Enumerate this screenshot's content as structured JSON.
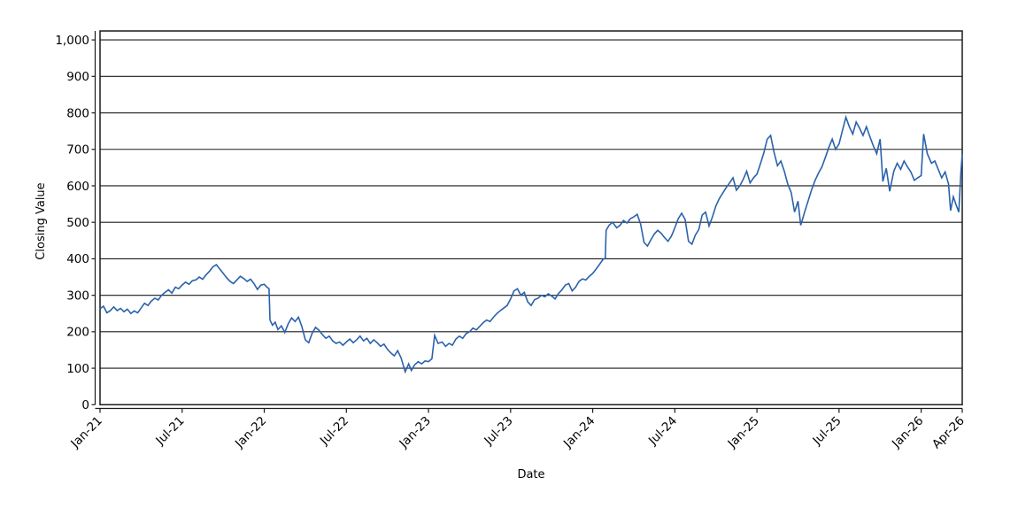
{
  "chart_data": {
    "type": "line",
    "title": "",
    "xlabel": "Date",
    "ylabel": "Closing Value",
    "ylim": [
      0,
      1025
    ],
    "yticks": [
      0,
      100,
      200,
      300,
      400,
      500,
      600,
      700,
      800,
      900,
      1000
    ],
    "ytick_labels": [
      "0",
      "100",
      "200",
      "300",
      "400",
      "500",
      "600",
      "700",
      "800",
      "900",
      "1,000"
    ],
    "x_range_months": [
      0,
      63
    ],
    "xticks": [
      {
        "label": "Jan-21",
        "m": 0
      },
      {
        "label": "Jul-21",
        "m": 6
      },
      {
        "label": "Jan-22",
        "m": 12
      },
      {
        "label": "Jul-22",
        "m": 18
      },
      {
        "label": "Jan-23",
        "m": 24
      },
      {
        "label": "Jul-23",
        "m": 30
      },
      {
        "label": "Jan-24",
        "m": 36
      },
      {
        "label": "Jul-24",
        "m": 42
      },
      {
        "label": "Jan-25",
        "m": 48
      },
      {
        "label": "Jul-25",
        "m": 54
      },
      {
        "label": "Jan-26",
        "m": 60
      },
      {
        "label": "Apr-26",
        "m": 63
      }
    ],
    "grid": "horizontal",
    "legend": "none",
    "line_color": "#2b62ab",
    "axis_color": "#1a1a1a",
    "series": [
      {
        "name": "Closing Value",
        "points": [
          [
            0,
            263
          ],
          [
            0.25,
            270
          ],
          [
            0.5,
            252
          ],
          [
            0.75,
            258
          ],
          [
            1,
            268
          ],
          [
            1.25,
            258
          ],
          [
            1.5,
            264
          ],
          [
            1.75,
            255
          ],
          [
            2,
            262
          ],
          [
            2.25,
            250
          ],
          [
            2.5,
            257
          ],
          [
            2.75,
            252
          ],
          [
            3,
            265
          ],
          [
            3.25,
            278
          ],
          [
            3.5,
            272
          ],
          [
            3.75,
            284
          ],
          [
            4,
            292
          ],
          [
            4.25,
            287
          ],
          [
            4.5,
            300
          ],
          [
            4.75,
            308
          ],
          [
            5,
            315
          ],
          [
            5.25,
            306
          ],
          [
            5.5,
            322
          ],
          [
            5.75,
            318
          ],
          [
            6,
            328
          ],
          [
            6.25,
            336
          ],
          [
            6.5,
            330
          ],
          [
            6.75,
            340
          ],
          [
            7,
            342
          ],
          [
            7.25,
            350
          ],
          [
            7.5,
            344
          ],
          [
            7.75,
            356
          ],
          [
            8,
            366
          ],
          [
            8.25,
            378
          ],
          [
            8.5,
            384
          ],
          [
            8.75,
            372
          ],
          [
            9,
            360
          ],
          [
            9.25,
            348
          ],
          [
            9.5,
            338
          ],
          [
            9.75,
            332
          ],
          [
            10,
            342
          ],
          [
            10.25,
            352
          ],
          [
            10.5,
            346
          ],
          [
            10.75,
            338
          ],
          [
            11,
            344
          ],
          [
            11.25,
            332
          ],
          [
            11.5,
            316
          ],
          [
            11.75,
            328
          ],
          [
            12,
            330
          ],
          [
            12.2,
            322
          ],
          [
            12.35,
            318
          ],
          [
            12.42,
            232
          ],
          [
            12.6,
            218
          ],
          [
            12.8,
            226
          ],
          [
            13,
            206
          ],
          [
            13.25,
            216
          ],
          [
            13.5,
            198
          ],
          [
            13.75,
            222
          ],
          [
            14,
            238
          ],
          [
            14.25,
            228
          ],
          [
            14.5,
            240
          ],
          [
            14.75,
            214
          ],
          [
            15,
            178
          ],
          [
            15.25,
            170
          ],
          [
            15.5,
            196
          ],
          [
            15.75,
            212
          ],
          [
            16,
            204
          ],
          [
            16.25,
            192
          ],
          [
            16.5,
            182
          ],
          [
            16.75,
            188
          ],
          [
            17,
            175
          ],
          [
            17.25,
            168
          ],
          [
            17.5,
            172
          ],
          [
            17.75,
            163
          ],
          [
            18,
            172
          ],
          [
            18.25,
            180
          ],
          [
            18.5,
            170
          ],
          [
            18.75,
            178
          ],
          [
            19,
            188
          ],
          [
            19.25,
            175
          ],
          [
            19.5,
            182
          ],
          [
            19.75,
            168
          ],
          [
            20,
            178
          ],
          [
            20.25,
            170
          ],
          [
            20.5,
            160
          ],
          [
            20.75,
            166
          ],
          [
            21,
            152
          ],
          [
            21.25,
            142
          ],
          [
            21.5,
            134
          ],
          [
            21.75,
            148
          ],
          [
            22,
            128
          ],
          [
            22.3,
            90
          ],
          [
            22.55,
            112
          ],
          [
            22.75,
            94
          ],
          [
            23,
            110
          ],
          [
            23.25,
            118
          ],
          [
            23.5,
            112
          ],
          [
            23.75,
            120
          ],
          [
            24,
            118
          ],
          [
            24.25,
            126
          ],
          [
            24.45,
            190
          ],
          [
            24.7,
            168
          ],
          [
            25,
            172
          ],
          [
            25.25,
            160
          ],
          [
            25.5,
            168
          ],
          [
            25.75,
            163
          ],
          [
            26,
            180
          ],
          [
            26.25,
            188
          ],
          [
            26.5,
            182
          ],
          [
            26.75,
            195
          ],
          [
            27,
            200
          ],
          [
            27.25,
            210
          ],
          [
            27.5,
            205
          ],
          [
            27.75,
            215
          ],
          [
            28,
            225
          ],
          [
            28.25,
            232
          ],
          [
            28.5,
            228
          ],
          [
            28.75,
            240
          ],
          [
            29,
            250
          ],
          [
            29.25,
            258
          ],
          [
            29.5,
            265
          ],
          [
            29.75,
            272
          ],
          [
            30,
            290
          ],
          [
            30.25,
            312
          ],
          [
            30.5,
            318
          ],
          [
            30.75,
            300
          ],
          [
            31,
            308
          ],
          [
            31.25,
            282
          ],
          [
            31.5,
            272
          ],
          [
            31.75,
            288
          ],
          [
            32,
            292
          ],
          [
            32.25,
            300
          ],
          [
            32.5,
            296
          ],
          [
            32.75,
            304
          ],
          [
            33,
            298
          ],
          [
            33.25,
            290
          ],
          [
            33.5,
            305
          ],
          [
            33.75,
            315
          ],
          [
            34,
            328
          ],
          [
            34.25,
            332
          ],
          [
            34.5,
            312
          ],
          [
            34.75,
            322
          ],
          [
            35,
            338
          ],
          [
            35.25,
            345
          ],
          [
            35.5,
            342
          ],
          [
            35.75,
            352
          ],
          [
            36,
            360
          ],
          [
            36.25,
            372
          ],
          [
            36.5,
            385
          ],
          [
            36.75,
            398
          ],
          [
            36.92,
            402
          ],
          [
            36.98,
            478
          ],
          [
            37.2,
            492
          ],
          [
            37.45,
            500
          ],
          [
            37.75,
            485
          ],
          [
            38,
            492
          ],
          [
            38.25,
            505
          ],
          [
            38.5,
            498
          ],
          [
            38.75,
            510
          ],
          [
            39,
            515
          ],
          [
            39.25,
            522
          ],
          [
            39.5,
            495
          ],
          [
            39.75,
            445
          ],
          [
            40,
            435
          ],
          [
            40.25,
            452
          ],
          [
            40.5,
            468
          ],
          [
            40.75,
            478
          ],
          [
            41,
            470
          ],
          [
            41.25,
            458
          ],
          [
            41.5,
            448
          ],
          [
            41.75,
            462
          ],
          [
            42,
            485
          ],
          [
            42.25,
            510
          ],
          [
            42.5,
            525
          ],
          [
            42.75,
            508
          ],
          [
            43,
            448
          ],
          [
            43.25,
            440
          ],
          [
            43.5,
            465
          ],
          [
            43.75,
            480
          ],
          [
            44,
            520
          ],
          [
            44.25,
            528
          ],
          [
            44.5,
            490
          ],
          [
            44.75,
            515
          ],
          [
            45,
            545
          ],
          [
            45.25,
            565
          ],
          [
            45.5,
            580
          ],
          [
            45.75,
            595
          ],
          [
            46,
            608
          ],
          [
            46.25,
            622
          ],
          [
            46.5,
            588
          ],
          [
            46.75,
            600
          ],
          [
            47,
            618
          ],
          [
            47.25,
            640
          ],
          [
            47.5,
            608
          ],
          [
            47.75,
            622
          ],
          [
            48,
            632
          ],
          [
            48.25,
            660
          ],
          [
            48.5,
            690
          ],
          [
            48.75,
            728
          ],
          [
            49,
            738
          ],
          [
            49.25,
            692
          ],
          [
            49.5,
            655
          ],
          [
            49.75,
            668
          ],
          [
            50,
            640
          ],
          [
            50.25,
            605
          ],
          [
            50.5,
            582
          ],
          [
            50.75,
            528
          ],
          [
            51,
            558
          ],
          [
            51.2,
            492
          ],
          [
            51.5,
            530
          ],
          [
            51.75,
            560
          ],
          [
            52,
            590
          ],
          [
            52.25,
            615
          ],
          [
            52.5,
            635
          ],
          [
            52.75,
            652
          ],
          [
            53,
            678
          ],
          [
            53.25,
            705
          ],
          [
            53.5,
            728
          ],
          [
            53.75,
            700
          ],
          [
            54,
            715
          ],
          [
            54.25,
            752
          ],
          [
            54.5,
            788
          ],
          [
            54.75,
            762
          ],
          [
            55,
            742
          ],
          [
            55.25,
            775
          ],
          [
            55.5,
            758
          ],
          [
            55.75,
            738
          ],
          [
            56,
            762
          ],
          [
            56.25,
            735
          ],
          [
            56.5,
            710
          ],
          [
            56.75,
            688
          ],
          [
            57,
            728
          ],
          [
            57.2,
            612
          ],
          [
            57.45,
            648
          ],
          [
            57.7,
            585
          ],
          [
            58,
            640
          ],
          [
            58.25,
            662
          ],
          [
            58.5,
            645
          ],
          [
            58.75,
            668
          ],
          [
            59,
            652
          ],
          [
            59.25,
            638
          ],
          [
            59.5,
            615
          ],
          [
            59.75,
            622
          ],
          [
            60,
            628
          ],
          [
            60.18,
            742
          ],
          [
            60.45,
            688
          ],
          [
            60.75,
            662
          ],
          [
            61,
            668
          ],
          [
            61.25,
            645
          ],
          [
            61.5,
            622
          ],
          [
            61.75,
            638
          ],
          [
            62,
            605
          ],
          [
            62.15,
            532
          ],
          [
            62.35,
            570
          ],
          [
            62.55,
            548
          ],
          [
            62.75,
            528
          ],
          [
            62.9,
            635
          ],
          [
            63,
            688
          ]
        ]
      }
    ]
  }
}
